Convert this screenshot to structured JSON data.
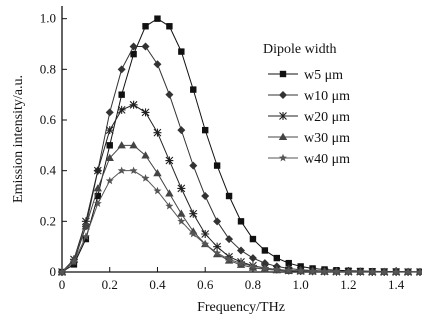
{
  "chart_data": {
    "type": "line",
    "xlabel": "Frequency/THz",
    "ylabel": "Emission intensity/a.u.",
    "xlim": [
      0,
      1.5
    ],
    "ylim": [
      0,
      1.05
    ],
    "xticks": [
      "0",
      "0.2",
      "0.4",
      "0.6",
      "0.8",
      "1.0",
      "1.2",
      "1.4"
    ],
    "yticks": [
      "0",
      "0.2",
      "0.4",
      "0.6",
      "0.8",
      "1.0"
    ],
    "legend_title": "Dipole width",
    "legend_position": "top-right",
    "grid": false,
    "x": [
      0,
      0.05,
      0.1,
      0.15,
      0.2,
      0.25,
      0.3,
      0.35,
      0.4,
      0.45,
      0.5,
      0.55,
      0.6,
      0.65,
      0.7,
      0.75,
      0.8,
      0.85,
      0.9,
      0.95,
      1.0,
      1.05,
      1.1,
      1.15,
      1.2,
      1.25,
      1.3,
      1.35,
      1.4,
      1.45,
      1.5
    ],
    "series": [
      {
        "name": "w5 μm",
        "marker": "square",
        "values": [
          0,
          0.03,
          0.13,
          0.3,
          0.5,
          0.7,
          0.86,
          0.97,
          1.0,
          0.97,
          0.87,
          0.72,
          0.56,
          0.42,
          0.3,
          0.2,
          0.13,
          0.085,
          0.055,
          0.035,
          0.022,
          0.014,
          0.01,
          0.007,
          0.005,
          0.004,
          0.003,
          0.002,
          0.002,
          0.001,
          0.001
        ]
      },
      {
        "name": "w10 μm",
        "marker": "diamond",
        "values": [
          0,
          0.04,
          0.18,
          0.4,
          0.63,
          0.8,
          0.89,
          0.89,
          0.82,
          0.7,
          0.56,
          0.42,
          0.3,
          0.2,
          0.13,
          0.085,
          0.055,
          0.035,
          0.022,
          0.014,
          0.009,
          0.006,
          0.004,
          0.003,
          0.002,
          0.002,
          0.001,
          0.001,
          0.001,
          0.001,
          0
        ]
      },
      {
        "name": "w20 μm",
        "marker": "asterisk",
        "values": [
          0,
          0.05,
          0.2,
          0.4,
          0.56,
          0.64,
          0.66,
          0.63,
          0.55,
          0.44,
          0.33,
          0.23,
          0.15,
          0.1,
          0.06,
          0.04,
          0.025,
          0.016,
          0.01,
          0.006,
          0.004,
          0.003,
          0.002,
          0.001,
          0.001,
          0.001,
          0,
          0,
          0,
          0,
          0
        ]
      },
      {
        "name": "w30 μm",
        "marker": "triangle",
        "values": [
          0,
          0.05,
          0.18,
          0.33,
          0.45,
          0.5,
          0.5,
          0.46,
          0.39,
          0.31,
          0.23,
          0.16,
          0.11,
          0.07,
          0.045,
          0.028,
          0.017,
          0.011,
          0.007,
          0.004,
          0.003,
          0.002,
          0.001,
          0.001,
          0.001,
          0,
          0,
          0,
          0,
          0,
          0
        ]
      },
      {
        "name": "w40 μm",
        "marker": "star",
        "values": [
          0,
          0.04,
          0.14,
          0.27,
          0.36,
          0.4,
          0.4,
          0.37,
          0.32,
          0.26,
          0.2,
          0.15,
          0.11,
          0.075,
          0.05,
          0.034,
          0.023,
          0.015,
          0.01,
          0.007,
          0.005,
          0.003,
          0.002,
          0.002,
          0.001,
          0.001,
          0.001,
          0,
          0,
          0,
          0
        ]
      }
    ]
  }
}
